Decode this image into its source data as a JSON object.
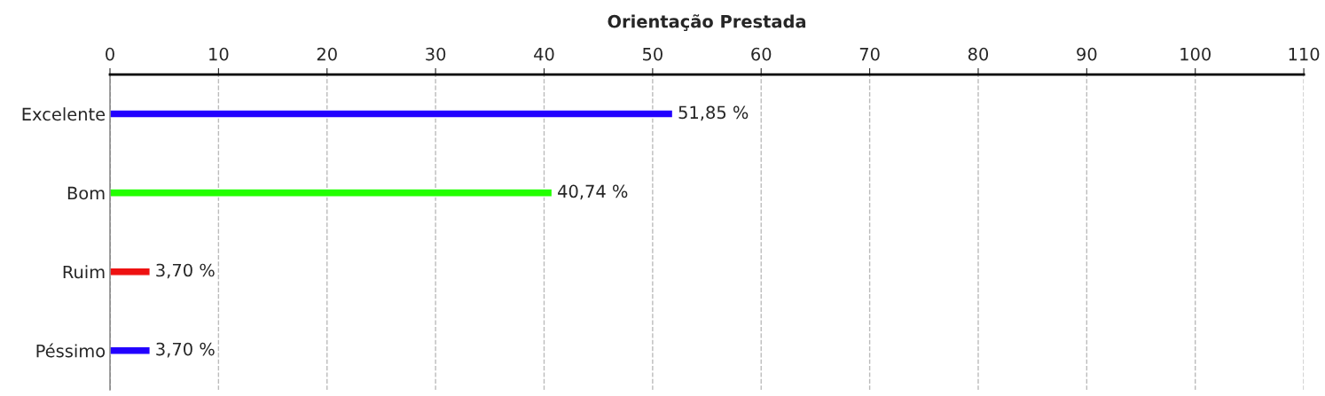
{
  "chart_data": {
    "type": "bar",
    "orientation": "horizontal",
    "title": "Orientação Prestada",
    "categories": [
      "Excelente",
      "Bom",
      "Ruim",
      "Péssimo"
    ],
    "values": [
      51.85,
      40.74,
      3.7,
      3.7
    ],
    "colors": [
      "#2200ff",
      "#22ff00",
      "#ee1111",
      "#2200ff"
    ],
    "value_labels": [
      "51,85 %",
      "40,74 %",
      "3,70 %",
      "3,70 %"
    ],
    "xlim": [
      0,
      110
    ],
    "xticks": [
      0,
      10,
      20,
      30,
      40,
      50,
      60,
      70,
      80,
      90,
      100,
      110
    ],
    "grid": "x"
  }
}
